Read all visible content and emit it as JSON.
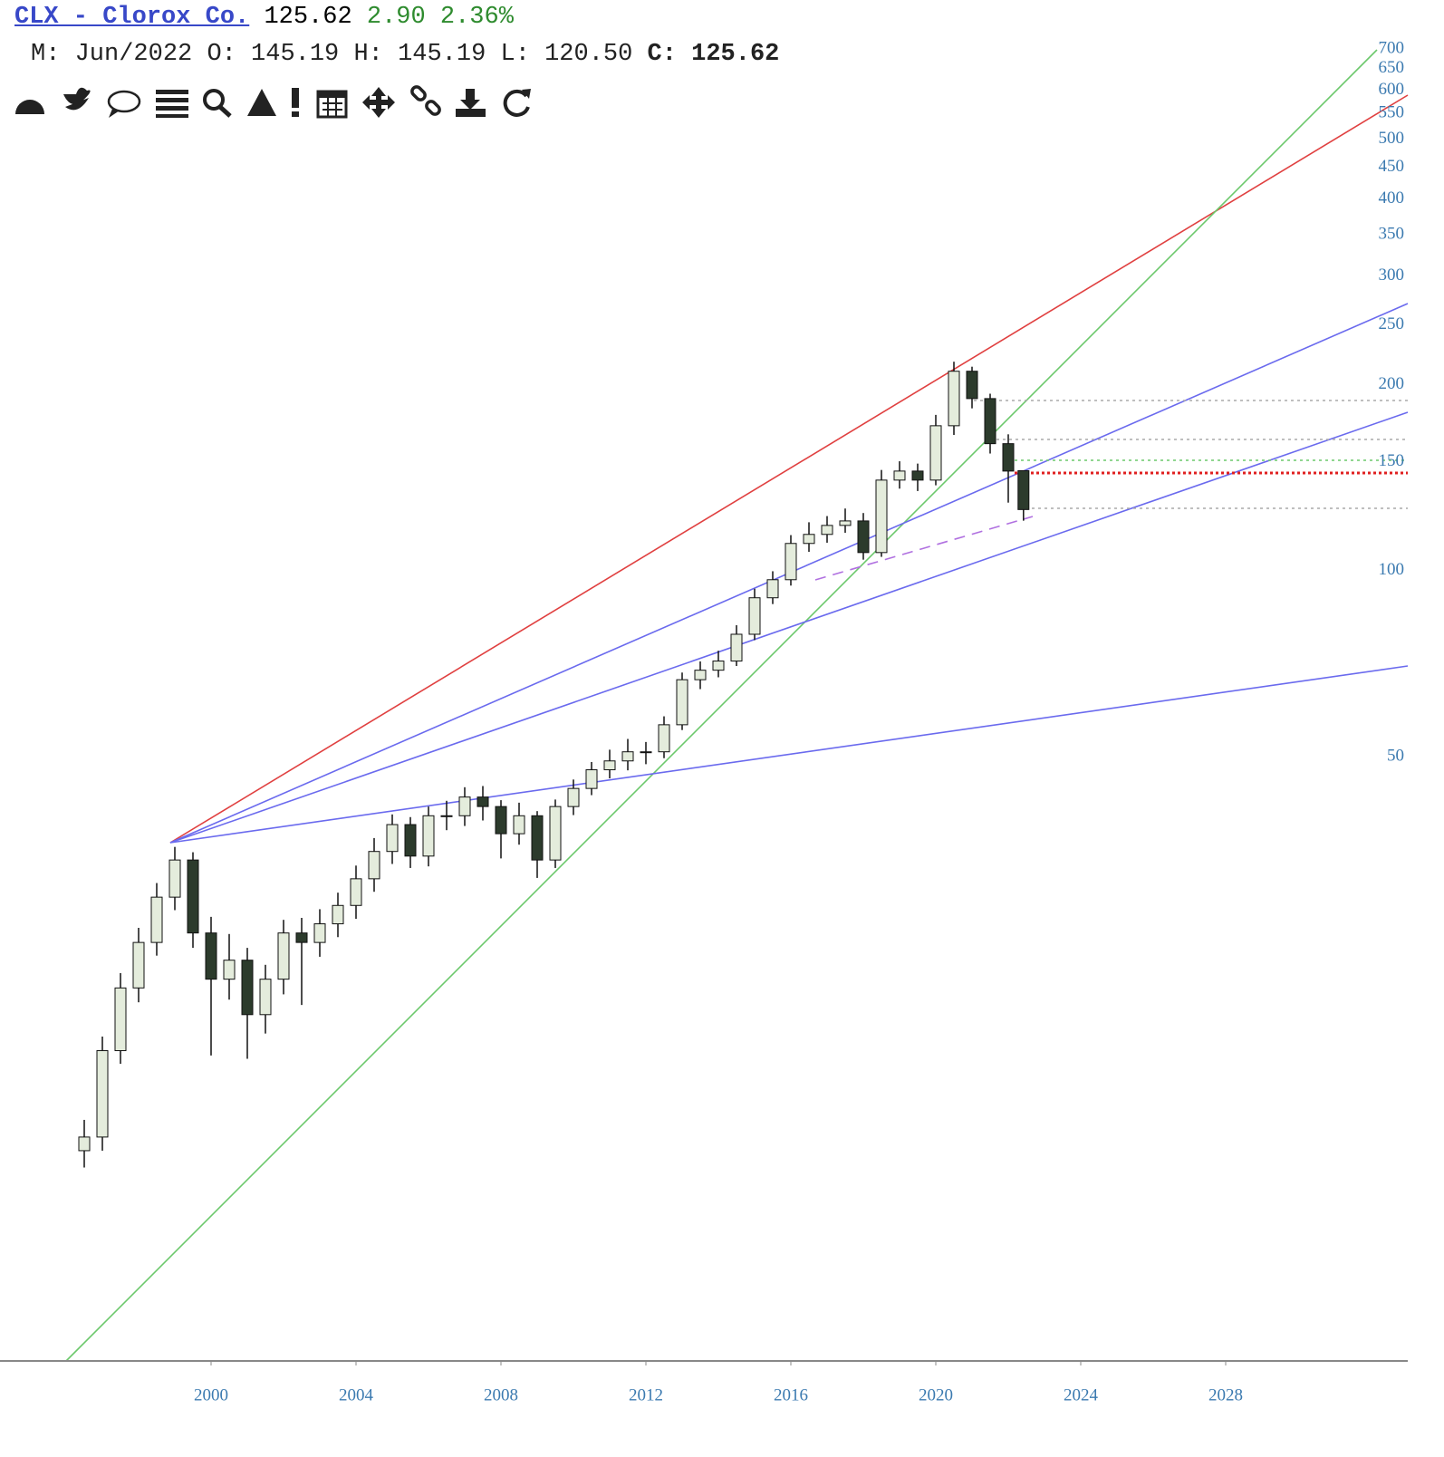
{
  "header": {
    "symbol": "CLX - Clorox Co.",
    "last": "125.62",
    "change": "2.90",
    "change_pct": "2.36%",
    "ohlc": [
      "M:",
      "Jun/2022",
      "O:",
      "145.19",
      "H:",
      "145.19",
      "L:",
      "120.50",
      "C:",
      "125.62"
    ]
  },
  "chart_data": {
    "type": "candlestick",
    "x": [
      1996.5,
      1997,
      1997.5,
      1998,
      1998.5,
      1999,
      1999.5,
      2000,
      2000.5,
      2001,
      2001.5,
      2002,
      2002.5,
      2003,
      2003.5,
      2004,
      2004.5,
      2005,
      2005.5,
      2006,
      2006.5,
      2007,
      2007.5,
      2008,
      2008.5,
      2009,
      2009.5,
      2010,
      2010.5,
      2011,
      2011.5,
      2012,
      2012.5,
      2013,
      2013.5,
      2014,
      2014.5,
      2015,
      2015.5,
      2016,
      2016.5,
      2017,
      2017.5,
      2018,
      2018.5,
      2019,
      2019.5,
      2020,
      2020.5,
      2021,
      2021.5,
      2022,
      2022.42
    ],
    "open": [
      11.5,
      12.1,
      16.7,
      21.1,
      25.0,
      29.6,
      34.0,
      25.9,
      21.8,
      23.4,
      19.1,
      21.8,
      25.9,
      25.0,
      26.8,
      28.7,
      31.7,
      35.1,
      38.8,
      34.5,
      40.1,
      40.1,
      43.0,
      41.5,
      37.5,
      40.1,
      34.0,
      41.5,
      44.4,
      47.6,
      49.2,
      50.9,
      50.9,
      56.3,
      66.6,
      69.0,
      71.4,
      78.9,
      90.4,
      96.7,
      110.7,
      114.5,
      118.4,
      120.4,
      107.0,
      140.2,
      145.0,
      140.2,
      171.7,
      210.4,
      190.0,
      160.6,
      145.19
    ],
    "high": [
      12.9,
      17.6,
      22.3,
      26.4,
      31.2,
      35.7,
      35.0,
      27.5,
      25.8,
      24.5,
      23.0,
      27.2,
      27.4,
      28.3,
      30.1,
      33.3,
      36.9,
      40.3,
      39.9,
      41.5,
      42.4,
      44.6,
      44.8,
      42.5,
      42.1,
      40.8,
      42.6,
      45.9,
      49.0,
      51.3,
      53.4,
      52.8,
      58.1,
      68.4,
      71.3,
      74.2,
      81.6,
      93.5,
      99.8,
      114.2,
      119.8,
      122.6,
      126.1,
      124.0,
      145.6,
      150.4,
      149.1,
      178.8,
      218.0,
      214.0,
      193.5,
      166.3,
      145.19
    ],
    "low": [
      10.8,
      11.5,
      15.9,
      20.0,
      23.8,
      28.2,
      24.5,
      16.4,
      20.2,
      16.2,
      17.8,
      20.6,
      19.8,
      23.7,
      25.5,
      27.3,
      30.2,
      33.5,
      33.0,
      33.2,
      38.0,
      38.6,
      39.4,
      34.2,
      36.0,
      31.8,
      33.0,
      40.2,
      43.3,
      46.1,
      47.5,
      48.6,
      49.7,
      55.2,
      64.3,
      67.2,
      70.1,
      77.2,
      88.3,
      94.6,
      107.3,
      111.0,
      115.2,
      104.2,
      105.3,
      135.8,
      134.6,
      137.5,
      165.9,
      183.2,
      154.8,
      128.9,
      120.5
    ],
    "close": [
      12.1,
      16.7,
      21.1,
      25.0,
      29.6,
      34.0,
      25.9,
      21.8,
      23.4,
      19.1,
      21.8,
      25.9,
      25.0,
      26.8,
      28.7,
      31.7,
      35.1,
      38.8,
      34.5,
      40.1,
      40.1,
      43.0,
      41.5,
      37.5,
      40.1,
      34.0,
      41.5,
      44.4,
      47.6,
      49.2,
      50.9,
      50.9,
      56.3,
      66.6,
      69.0,
      71.4,
      78.9,
      90.4,
      96.7,
      110.7,
      114.5,
      118.4,
      120.4,
      107.0,
      140.2,
      145.0,
      140.2,
      171.7,
      210.4,
      190.0,
      160.6,
      145.0,
      125.62
    ],
    "up_color": "#e4ecdc",
    "down_color": "#2c3b2c",
    "xlim": [
      1994.175,
      2033.025
    ],
    "xticks": [
      2000,
      2004,
      2008,
      2012,
      2016,
      2020,
      2024,
      2028
    ],
    "ylim": [
      5.25,
      840
    ],
    "yticks": [
      50,
      100,
      150,
      200,
      250,
      300,
      350,
      400,
      450,
      500,
      550,
      600,
      650,
      700
    ],
    "log_scale": true
  }
}
